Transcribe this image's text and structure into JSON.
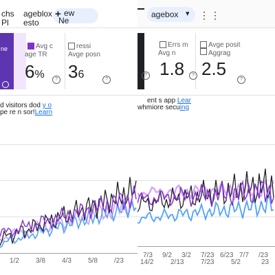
{
  "left": {
    "header": {
      "tab_a_line1": "chs",
      "tab_a_line2": "Pl",
      "tab_b_line1": "ageblox",
      "tab_b_line2": "esto",
      "new_button_line1": "ew",
      "new_button_line2": "Ne",
      "add_icon": "plus-icon"
    },
    "metrics": [
      {
        "checkbox_label": "Avg c",
        "label_line2": "age TR",
        "value": "6",
        "value_suffix": "%",
        "checked": true
      },
      {
        "checkbox_label": "ressi",
        "label_line2": "Avge posn",
        "value": "3",
        "value_suffix": "6",
        "checked": false
      }
    ],
    "note_line1": "d visitors dod ",
    "note_link1": "y o",
    "note_line2": "pe re n sor!",
    "note_link2": "Learn",
    "x_ticks": [
      "1/2",
      "3/8",
      "4/3",
      "5/8",
      "/23"
    ]
  },
  "right": {
    "header": {
      "label": "agebox",
      "chevron_icon": "chevron-down-icon",
      "more_icon": "more-vert-icon"
    },
    "metrics": [
      {
        "checkbox_label": "Errs m",
        "label_line2": "Avg n",
        "value": "1.8",
        "value_suffix": "",
        "checked": false
      },
      {
        "checkbox_label": "Avge posit",
        "label_line2": "Aggrag",
        "value": "2.5",
        "value_suffix": "",
        "checked": false
      }
    ],
    "note_line1": "ent s app ",
    "note_link1": "Lear",
    "note_line2": "whmiore secu",
    "note_link2": "ing",
    "x_ticks": [
      "7/3",
      "9/2",
      "3/2",
      "7/23",
      "6/23",
      "7/7",
      "/23"
    ],
    "x_ticks_row2": [
      "14/2",
      "2/13",
      "7/23",
      "5/2",
      "23"
    ]
  },
  "colors": {
    "purple": "#5e35b1",
    "accent": "#8430ce",
    "blue": "#4fa3f7",
    "light_purple": "#d4a6f5",
    "link": "#1a73e8"
  }
}
